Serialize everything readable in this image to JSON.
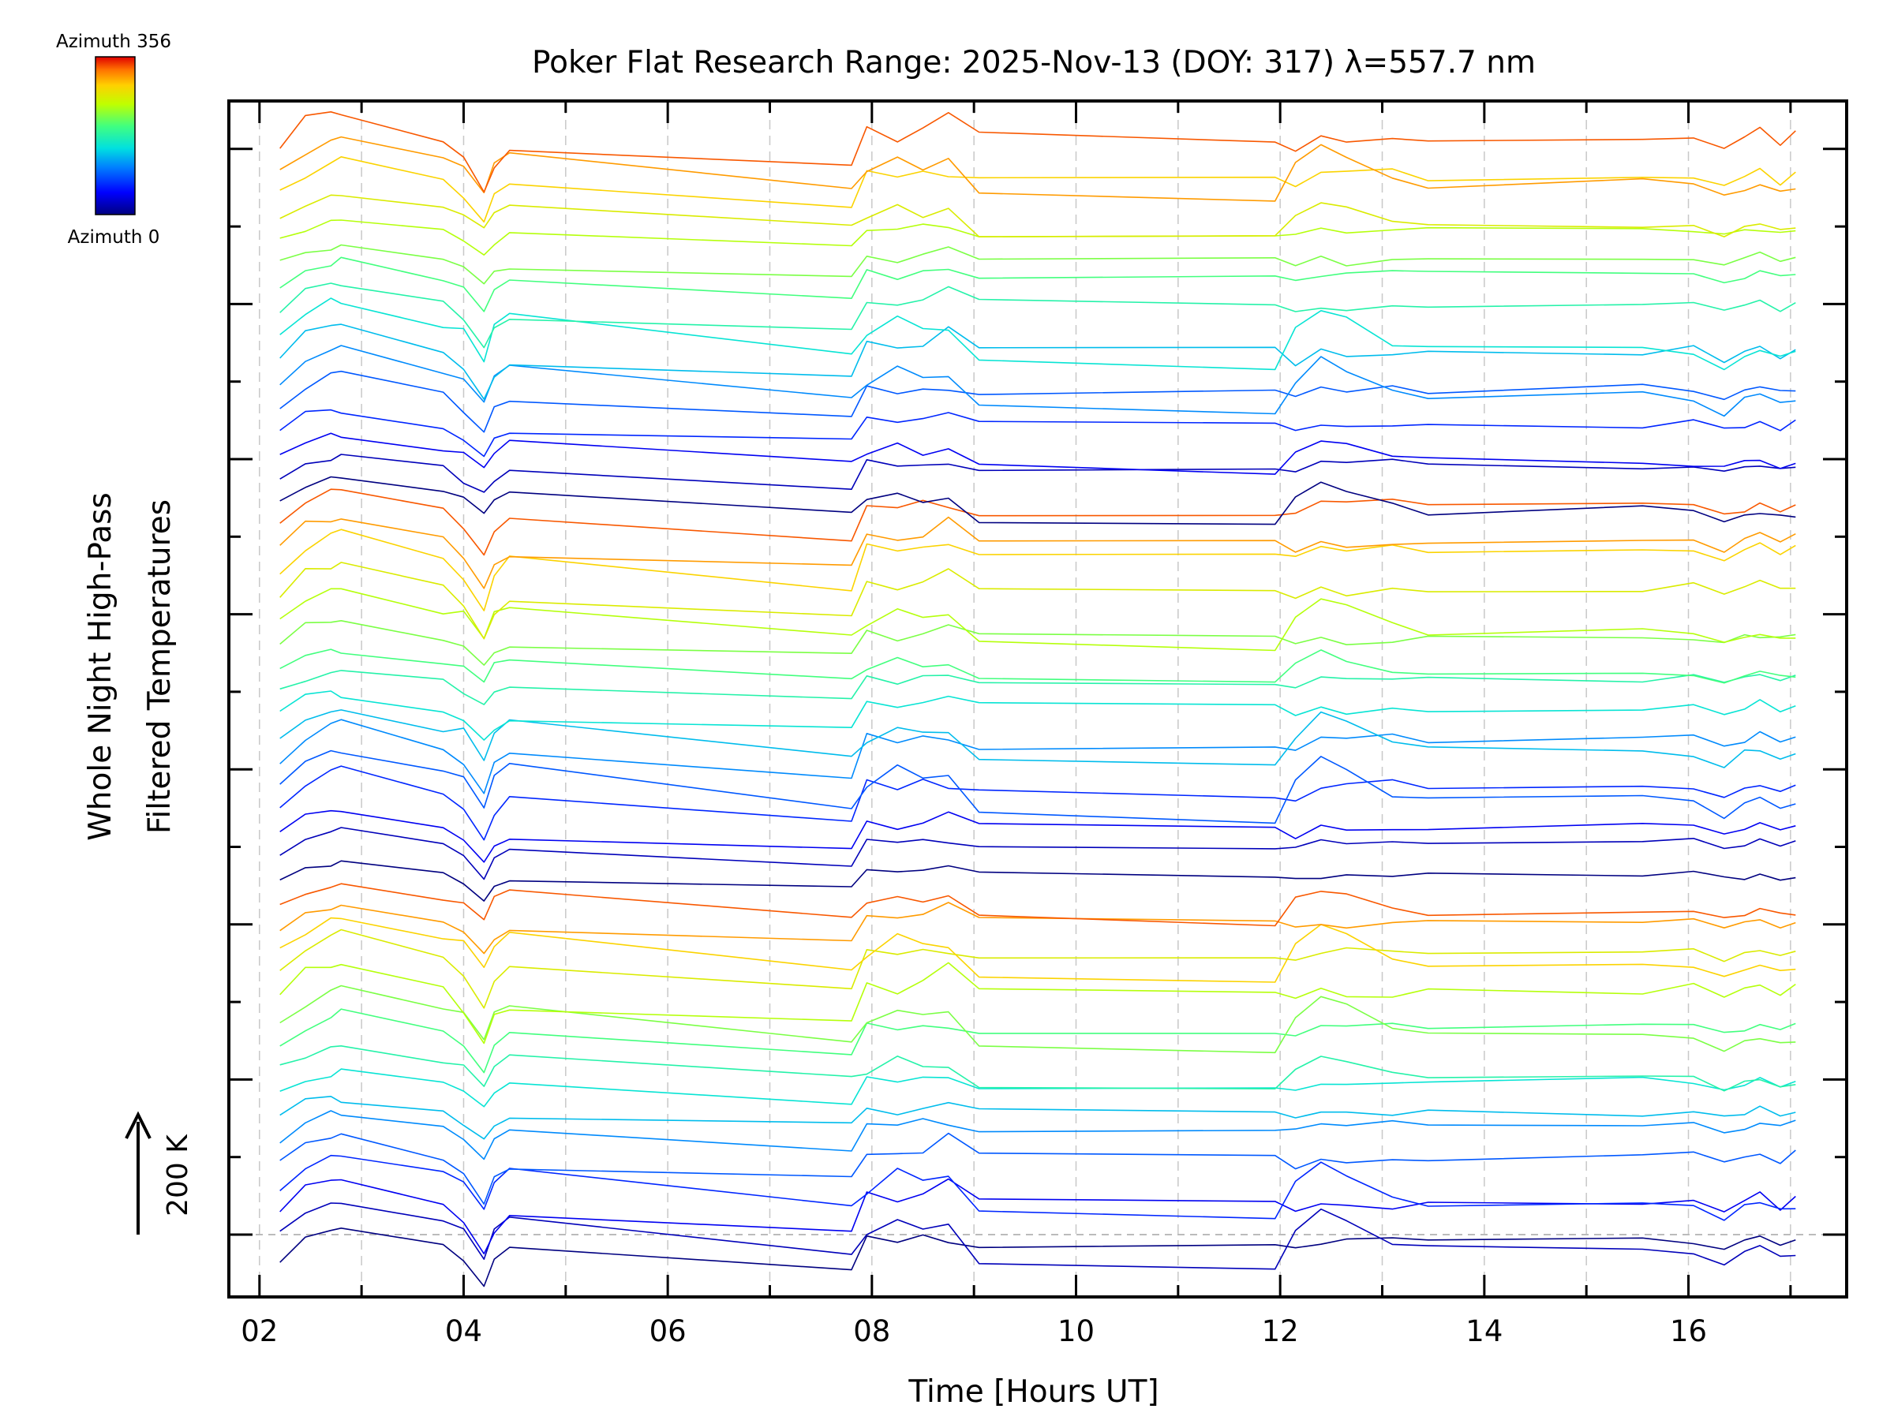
{
  "chart_data": {
    "type": "line",
    "title": "Poker Flat Research Range: 2025-Nov-13 (DOY: 317) λ=557.7 nm",
    "xlabel": "Time [Hours UT]",
    "ylabel_lines": [
      "Whole Night High-Pass",
      "Filtered Temperatures"
    ],
    "scale_label": "200 K",
    "colorbar": {
      "top_label": "Azimuth 356",
      "bottom_label": "Azimuth 0",
      "azimuth_min": 0,
      "azimuth_max": 356
    },
    "xlim": [
      1.7,
      17.55
    ],
    "x_ticks": [
      "02",
      "04",
      "06",
      "08",
      "10",
      "12",
      "14",
      "16"
    ],
    "x_tick_values": [
      2,
      4,
      6,
      8,
      10,
      12,
      14,
      16
    ],
    "grid": true,
    "reference_line_value": 0,
    "trace_x_hours": [
      2.2,
      2.45,
      2.7,
      2.8,
      3.8,
      4.0,
      4.2,
      4.3,
      4.45,
      7.8,
      7.95,
      8.25,
      8.5,
      8.75,
      9.05,
      11.95,
      12.15,
      12.4,
      12.65,
      13.1,
      13.45,
      15.55,
      16.05,
      16.35,
      16.55,
      16.7,
      16.9,
      17.05
    ],
    "trace_shape_set_A": [
      0,
      30,
      50,
      55,
      20,
      -5,
      -45,
      -5,
      15,
      -20,
      35,
      25,
      35,
      30,
      20,
      20,
      15,
      30,
      30,
      35,
      25,
      30,
      30,
      15,
      25,
      35,
      20,
      30
    ],
    "trace_shape_set_B": [
      0,
      25,
      45,
      45,
      15,
      10,
      -30,
      10,
      25,
      -25,
      -5,
      20,
      5,
      10,
      -35,
      -45,
      5,
      35,
      20,
      -10,
      -20,
      -15,
      -25,
      -40,
      -25,
      -20,
      -30,
      -25
    ],
    "trace_shape_set_C": [
      0,
      35,
      40,
      40,
      10,
      -15,
      -55,
      -25,
      -10,
      -25,
      20,
      10,
      20,
      40,
      15,
      10,
      -5,
      10,
      5,
      5,
      10,
      10,
      15,
      0,
      10,
      20,
      5,
      15
    ],
    "trace_count": 48,
    "trace_offset_step_K": 40
  }
}
